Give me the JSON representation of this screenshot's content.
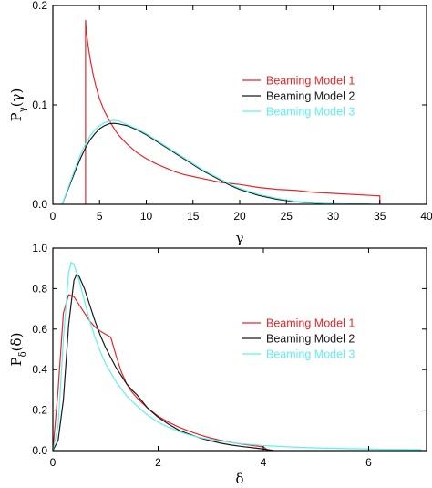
{
  "colors": {
    "model1": "#e8262a",
    "model2": "#1a1a1a",
    "model3": "#5ff0f0"
  },
  "chart_data": [
    {
      "type": "line",
      "xlabel": "γ",
      "ylabel_main": "P",
      "ylabel_sub": "γ",
      "ylabel_arg": "(γ)",
      "xlim": [
        0,
        40
      ],
      "ylim": [
        0,
        0.2
      ],
      "xticks": [
        0,
        5,
        10,
        15,
        20,
        25,
        30,
        35,
        40
      ],
      "xtick_labels": [
        "0",
        "5",
        "10",
        "15",
        "20",
        "25",
        "30",
        "35",
        "40"
      ],
      "yticks": [
        0,
        0.1,
        0.2
      ],
      "ytick_labels": [
        "0.0",
        "0.1",
        "0.2"
      ],
      "legend_position": "right",
      "series": [
        {
          "name": "Beaming Model 1",
          "color_key": "model1",
          "x": [
            3.5,
            3.5,
            3.6,
            3.8,
            4.0,
            4.3,
            4.6,
            5.0,
            5.5,
            6.0,
            6.5,
            7.0,
            8.0,
            9.0,
            10.0,
            11.0,
            12.0,
            13.0,
            14.0,
            15.0,
            16.0,
            17.0,
            18.0,
            19.0,
            20.0,
            22.0,
            24.0,
            26.0,
            28.0,
            30.0,
            32.0,
            34.0,
            35.0,
            35.0
          ],
          "y": [
            0.0,
            0.185,
            0.172,
            0.158,
            0.146,
            0.131,
            0.119,
            0.106,
            0.094,
            0.085,
            0.077,
            0.07,
            0.06,
            0.052,
            0.046,
            0.041,
            0.037,
            0.033,
            0.03,
            0.028,
            0.026,
            0.024,
            0.022,
            0.021,
            0.02,
            0.017,
            0.015,
            0.014,
            0.012,
            0.011,
            0.01,
            0.009,
            0.0085,
            0.0
          ]
        },
        {
          "name": "Beaming Model 2",
          "color_key": "model2",
          "x": [
            1.0,
            1.5,
            2.0,
            2.5,
            3.0,
            3.5,
            4.0,
            4.5,
            5.0,
            5.5,
            6.0,
            6.5,
            7.0,
            7.5,
            8.0,
            9.0,
            10.0,
            11.0,
            12.0,
            13.0,
            14.0,
            15.0,
            16.0,
            17.0,
            18.0,
            19.0,
            20.0,
            22.0,
            24.0,
            26.0,
            28.0,
            30.0,
            32.0,
            34.0
          ],
          "y": [
            0.0,
            0.012,
            0.024,
            0.036,
            0.047,
            0.057,
            0.065,
            0.071,
            0.076,
            0.079,
            0.081,
            0.0815,
            0.081,
            0.08,
            0.079,
            0.075,
            0.07,
            0.064,
            0.058,
            0.052,
            0.046,
            0.04,
            0.034,
            0.029,
            0.024,
            0.019,
            0.015,
            0.009,
            0.005,
            0.0025,
            0.0012,
            0.0005,
            0.0002,
            0.0
          ]
        },
        {
          "name": "Beaming Model 3",
          "color_key": "model3",
          "x": [
            1.0,
            1.5,
            2.0,
            2.5,
            3.0,
            3.5,
            4.0,
            4.5,
            5.0,
            5.5,
            6.0,
            6.5,
            7.0,
            7.5,
            8.0,
            9.0,
            10.0,
            11.0,
            12.0,
            13.0,
            14.0,
            15.0,
            16.0,
            17.0,
            18.0,
            19.0,
            20.0,
            22.0,
            24.0,
            26.0,
            28.0,
            30.0,
            32.0,
            34.0
          ],
          "y": [
            0.0,
            0.013,
            0.026,
            0.039,
            0.051,
            0.061,
            0.069,
            0.075,
            0.079,
            0.082,
            0.0835,
            0.0845,
            0.084,
            0.082,
            0.08,
            0.076,
            0.071,
            0.065,
            0.059,
            0.053,
            0.047,
            0.041,
            0.035,
            0.03,
            0.025,
            0.02,
            0.016,
            0.01,
            0.006,
            0.003,
            0.0015,
            0.0006,
            0.0002,
            0.0
          ]
        }
      ]
    },
    {
      "type": "line",
      "xlabel": "δ",
      "ylabel_main": "P",
      "ylabel_sub": "δ",
      "ylabel_arg": "(δ)",
      "xlim": [
        0,
        7.1
      ],
      "ylim": [
        0,
        1.0
      ],
      "xticks": [
        0,
        2,
        4,
        6
      ],
      "xtick_labels": [
        "0",
        "2",
        "4",
        "6"
      ],
      "yticks": [
        0,
        0.2,
        0.4,
        0.6,
        0.8,
        1.0
      ],
      "ytick_labels": [
        "0.0",
        "0.2",
        "0.4",
        "0.6",
        "0.8",
        "1.0"
      ],
      "legend_position": "right",
      "series": [
        {
          "name": "Beaming Model 1",
          "color_key": "model1",
          "x": [
            0.0,
            0.1,
            0.2,
            0.3,
            0.4,
            0.5,
            0.6,
            0.7,
            0.8,
            0.9,
            1.0,
            1.1,
            1.2,
            1.3,
            1.4,
            1.5,
            1.6,
            1.8,
            2.0,
            2.2,
            2.4,
            2.6,
            2.8,
            3.0,
            3.2,
            3.4,
            3.6,
            3.8,
            4.0,
            4.1
          ],
          "y": [
            0.0,
            0.3,
            0.68,
            0.77,
            0.76,
            0.72,
            0.68,
            0.64,
            0.61,
            0.59,
            0.575,
            0.56,
            0.47,
            0.39,
            0.33,
            0.29,
            0.26,
            0.21,
            0.17,
            0.14,
            0.115,
            0.095,
            0.077,
            0.062,
            0.05,
            0.04,
            0.032,
            0.025,
            0.018,
            0.0
          ]
        },
        {
          "name": "Beaming Model 2",
          "color_key": "model2",
          "x": [
            0.0,
            0.1,
            0.2,
            0.3,
            0.4,
            0.45,
            0.5,
            0.6,
            0.7,
            0.8,
            0.9,
            1.0,
            1.1,
            1.2,
            1.3,
            1.4,
            1.5,
            1.6,
            1.8,
            2.0,
            2.2,
            2.4,
            2.6,
            2.8,
            3.0,
            3.2,
            3.4,
            3.6,
            3.8,
            4.0,
            4.2
          ],
          "y": [
            0.0,
            0.05,
            0.25,
            0.62,
            0.84,
            0.87,
            0.86,
            0.8,
            0.72,
            0.64,
            0.57,
            0.51,
            0.46,
            0.41,
            0.37,
            0.33,
            0.3,
            0.275,
            0.21,
            0.165,
            0.13,
            0.1,
            0.08,
            0.062,
            0.048,
            0.036,
            0.027,
            0.02,
            0.014,
            0.008,
            0.0
          ]
        },
        {
          "name": "Beaming Model 3",
          "color_key": "model3",
          "x": [
            0.0,
            0.1,
            0.2,
            0.3,
            0.35,
            0.4,
            0.5,
            0.6,
            0.7,
            0.8,
            0.9,
            1.0,
            1.2,
            1.4,
            1.6,
            1.8,
            2.0,
            2.2,
            2.4,
            2.6,
            2.8,
            3.0,
            3.5,
            4.0,
            4.5,
            5.0,
            5.5,
            6.0,
            6.5,
            7.0
          ],
          "y": [
            0.0,
            0.12,
            0.55,
            0.88,
            0.93,
            0.92,
            0.84,
            0.74,
            0.64,
            0.56,
            0.49,
            0.43,
            0.34,
            0.27,
            0.22,
            0.175,
            0.14,
            0.115,
            0.093,
            0.077,
            0.064,
            0.054,
            0.036,
            0.025,
            0.018,
            0.013,
            0.01,
            0.008,
            0.006,
            0.005
          ]
        }
      ]
    }
  ]
}
